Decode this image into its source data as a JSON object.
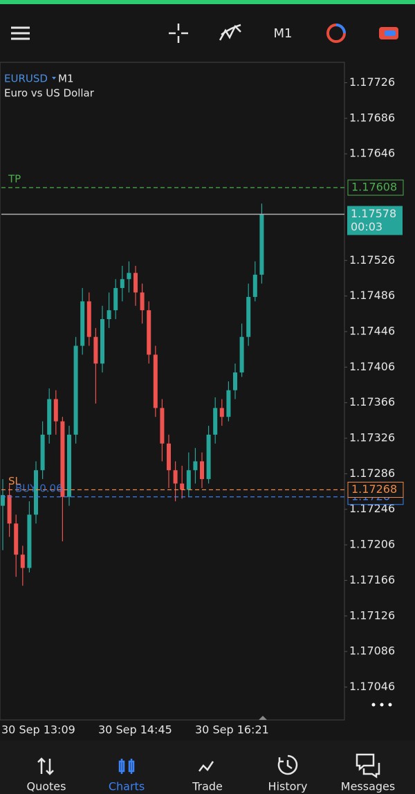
{
  "toolbar": {
    "timeframe": "M1"
  },
  "chart_data": {
    "type": "candlestick",
    "symbol": "EURUSD",
    "timeframe": "M1",
    "description": "Euro vs US Dollar",
    "ylim": [
      1.17009,
      1.17749
    ],
    "yticks": [
      1.17726,
      1.17686,
      1.17646,
      1.17526,
      1.17486,
      1.17446,
      1.17406,
      1.17366,
      1.17326,
      1.17286,
      1.17246,
      1.17206,
      1.17166,
      1.17126,
      1.17086,
      1.17046
    ],
    "xtick_labels": [
      "30 Sep 13:09",
      "30 Sep 14:45",
      "30 Sep 16:21"
    ],
    "up_color": "#26a69a",
    "down_color": "#ef5350",
    "open": [
      1.1725,
      1.17262,
      1.1723,
      1.17195,
      1.1718,
      1.1724,
      1.1729,
      1.1733,
      1.1737,
      1.17345,
      1.1726,
      1.1733,
      1.1743,
      1.1748,
      1.1744,
      1.1741,
      1.1746,
      1.1747,
      1.17495,
      1.17505,
      1.17512,
      1.1749,
      1.1747,
      1.1742,
      1.1736,
      1.1732,
      1.1729,
      1.17275,
      1.17268,
      1.1729,
      1.173,
      1.1728,
      1.1733,
      1.1736,
      1.1735,
      1.1738,
      1.174,
      1.1744,
      1.17485,
      1.1751
    ],
    "high": [
      1.1728,
      1.17275,
      1.1724,
      1.17205,
      1.17255,
      1.173,
      1.17345,
      1.17382,
      1.1738,
      1.1735,
      1.1734,
      1.1744,
      1.17495,
      1.1749,
      1.1745,
      1.17475,
      1.1749,
      1.17505,
      1.1752,
      1.17525,
      1.1752,
      1.175,
      1.1748,
      1.1743,
      1.1737,
      1.1733,
      1.173,
      1.17295,
      1.1731,
      1.17315,
      1.1731,
      1.1734,
      1.17372,
      1.1737,
      1.1739,
      1.1741,
      1.17455,
      1.175,
      1.17525,
      1.1759
    ],
    "low": [
      1.172,
      1.17215,
      1.1717,
      1.1716,
      1.17175,
      1.1723,
      1.1728,
      1.1732,
      1.1733,
      1.1721,
      1.1725,
      1.1732,
      1.1742,
      1.1743,
      1.17365,
      1.174,
      1.1745,
      1.1746,
      1.1748,
      1.1749,
      1.17475,
      1.17455,
      1.1741,
      1.1735,
      1.173,
      1.1727,
      1.17255,
      1.17258,
      1.1726,
      1.17275,
      1.1727,
      1.17275,
      1.1732,
      1.1734,
      1.17345,
      1.1737,
      1.17395,
      1.1743,
      1.1748,
      1.175
    ],
    "close": [
      1.17262,
      1.1723,
      1.17195,
      1.1718,
      1.1724,
      1.1729,
      1.1733,
      1.1737,
      1.17345,
      1.1726,
      1.1733,
      1.1743,
      1.1748,
      1.1744,
      1.1741,
      1.1746,
      1.1747,
      1.17495,
      1.17505,
      1.17512,
      1.1749,
      1.1747,
      1.1742,
      1.1736,
      1.1732,
      1.1729,
      1.17275,
      1.17268,
      1.1729,
      1.173,
      1.1728,
      1.1733,
      1.1736,
      1.1735,
      1.1738,
      1.174,
      1.1744,
      1.17485,
      1.1751,
      1.17578
    ],
    "take_profit": {
      "label": "TP",
      "value": 1.17608,
      "color": "#4caf50"
    },
    "stop_loss": {
      "label": "SL",
      "value": 1.17268,
      "color": "#f08a4b"
    },
    "position": {
      "label": "BUY 0.06",
      "value": 1.1726,
      "color": "#3b82f6"
    },
    "bid": {
      "value": 1.17578,
      "countdown": "00:03",
      "color": "#26a69a"
    }
  },
  "nav": {
    "items": [
      "Quotes",
      "Charts",
      "Trade",
      "History",
      "Messages"
    ],
    "active": 1
  }
}
